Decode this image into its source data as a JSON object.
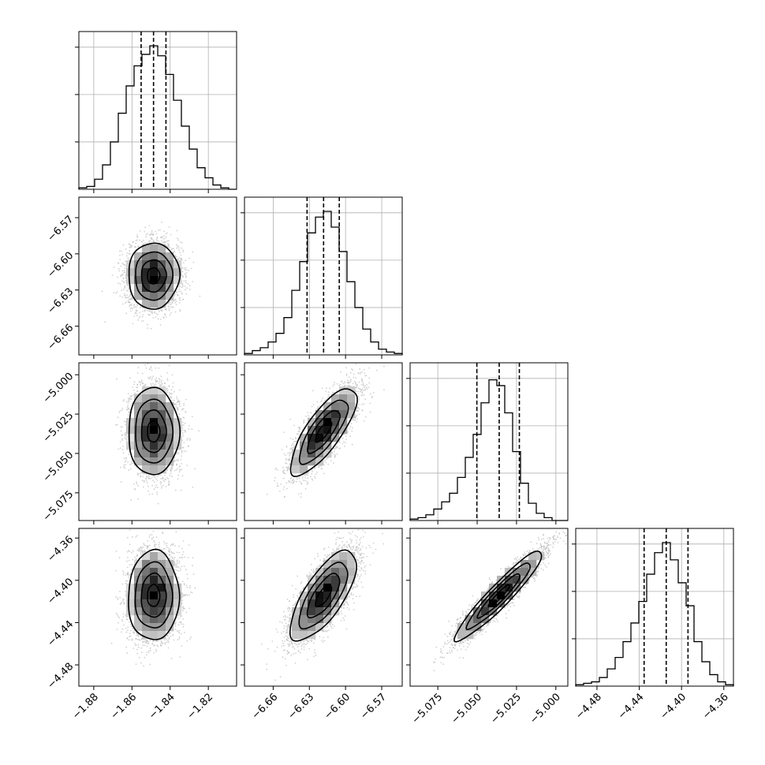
{
  "chart_data": {
    "type": "corner",
    "parameters": [
      {
        "range": [
          -1.8878,
          -1.8052
        ],
        "ticks": [
          "-1.88",
          "-1.86",
          "-1.84",
          "-1.82"
        ],
        "tick_values": [
          -1.88,
          -1.86,
          -1.84,
          -1.82
        ],
        "quantiles": [
          -1.8552,
          -1.8487,
          -1.8422
        ],
        "hist": [
          0.01,
          0.02,
          0.07,
          0.17,
          0.33,
          0.53,
          0.72,
          0.86,
          0.94,
          1.0,
          0.93,
          0.8,
          0.62,
          0.44,
          0.28,
          0.15,
          0.08,
          0.03,
          0.01,
          0.0
        ]
      },
      {
        "range": [
          -6.6838,
          -6.553
        ],
        "ticks": [
          "-6.66",
          "-6.63",
          "-6.60",
          "-6.57"
        ],
        "tick_values": [
          -6.66,
          -6.63,
          -6.6,
          -6.57
        ],
        "quantiles": [
          -6.6319,
          -6.6182,
          -6.6052
        ],
        "hist": [
          0.01,
          0.03,
          0.05,
          0.09,
          0.15,
          0.26,
          0.45,
          0.65,
          0.85,
          0.96,
          1.0,
          0.89,
          0.72,
          0.51,
          0.33,
          0.18,
          0.09,
          0.04,
          0.02,
          0.01
        ]
      },
      {
        "range": [
          -5.0926,
          -4.9924
        ],
        "ticks": [
          "-5.075",
          "-5.050",
          "-5.025",
          "-5.000"
        ],
        "tick_values": [
          -5.075,
          -5.05,
          -5.025,
          -5.0
        ],
        "quantiles": [
          -5.0502,
          -5.036,
          -5.0232
        ],
        "hist": [
          0.01,
          0.02,
          0.04,
          0.08,
          0.13,
          0.19,
          0.3,
          0.44,
          0.6,
          0.82,
          0.98,
          0.94,
          0.75,
          0.48,
          0.26,
          0.12,
          0.05,
          0.02,
          0.0,
          0.0
        ]
      },
      {
        "range": [
          -4.5001,
          -4.3509
        ],
        "ticks": [
          "-4.48",
          "-4.44",
          "-4.40",
          "-4.36"
        ],
        "tick_values": [
          -4.48,
          -4.44,
          -4.4,
          -4.36
        ],
        "quantiles": [
          -4.4354,
          -4.4145,
          -4.3939
        ],
        "hist": [
          0.01,
          0.02,
          0.03,
          0.06,
          0.12,
          0.2,
          0.31,
          0.44,
          0.59,
          0.78,
          0.93,
          1.0,
          0.88,
          0.72,
          0.56,
          0.31,
          0.17,
          0.08,
          0.03,
          0.01
        ]
      }
    ],
    "correlations": [
      [
        1.0,
        0.02,
        0.0,
        0.02
      ],
      [
        0.02,
        1.0,
        0.78,
        0.72
      ],
      [
        0.0,
        0.78,
        1.0,
        0.94
      ],
      [
        0.02,
        0.72,
        0.94,
        1.0
      ]
    ],
    "quantile_levels": [
      0.16,
      0.5,
      0.84
    ],
    "grid": true,
    "colors": {
      "line": "#000000",
      "scatter": "#bdbdbd",
      "grid": "#b0b0b0",
      "background": "#ffffff"
    }
  }
}
